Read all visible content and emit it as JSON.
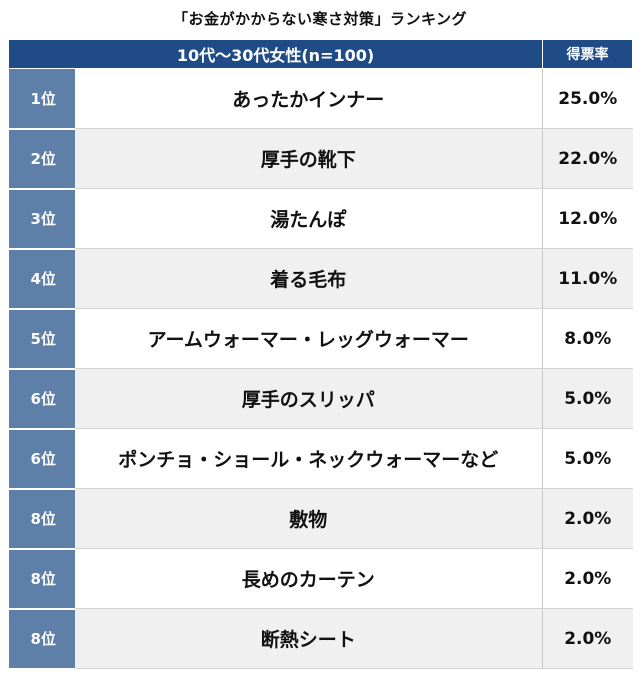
{
  "title": "「お金がかからない寒さ対策」ランキング",
  "chart_data": {
    "type": "table",
    "header": {
      "group": "10代〜30代女性(n=100)",
      "value_label": "得票率"
    },
    "rows": [
      {
        "rank": "1位",
        "name": "あったかインナー",
        "value": "25.0%"
      },
      {
        "rank": "2位",
        "name": "厚手の靴下",
        "value": "22.0%"
      },
      {
        "rank": "3位",
        "name": "湯たんぽ",
        "value": "12.0%"
      },
      {
        "rank": "4位",
        "name": "着る毛布",
        "value": "11.0%"
      },
      {
        "rank": "5位",
        "name": "アームウォーマー・レッグウォーマー",
        "value": "8.0%"
      },
      {
        "rank": "6位",
        "name": "厚手のスリッパ",
        "value": "5.0%"
      },
      {
        "rank": "6位",
        "name": "ポンチョ・ショール・ネックウォーマーなど",
        "value": "5.0%"
      },
      {
        "rank": "8位",
        "name": "敷物",
        "value": "2.0%"
      },
      {
        "rank": "8位",
        "name": "長めのカーテン",
        "value": "2.0%"
      },
      {
        "rank": "8位",
        "name": "断熱シート",
        "value": "2.0%"
      }
    ]
  },
  "colors": {
    "header_bg": "#1f4b86",
    "rank_bg": "#5e7fa8",
    "row_alt_bg": "#f0f0f0"
  }
}
